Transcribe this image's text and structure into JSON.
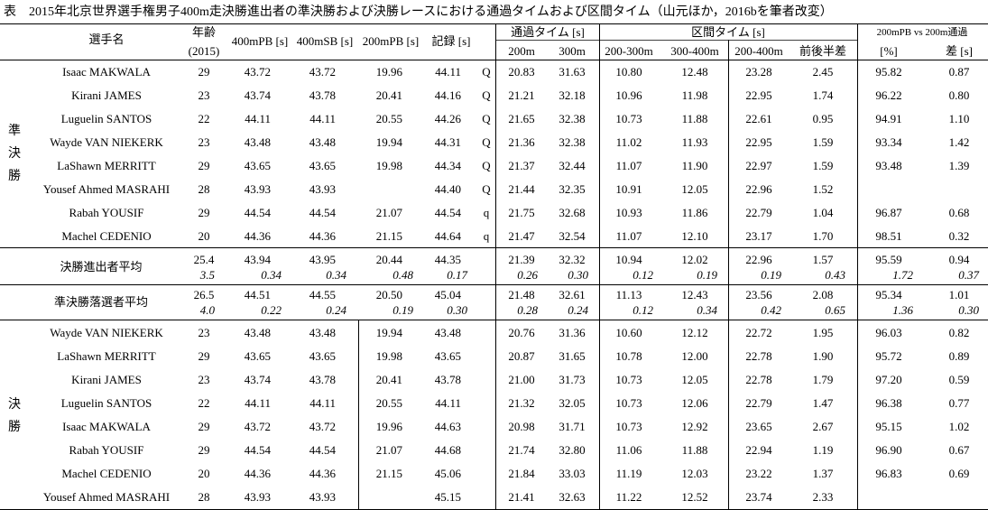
{
  "title": "表　2015年北京世界選手権男子400m走決勝進出者の準決勝および決勝レースにおける通過タイムおよび区間タイム（山元ほか，2016bを筆者改変）",
  "headers": {
    "athlete": "選手名",
    "age": "年齢",
    "age_sub": "(2015)",
    "pb400": "400mPB [s]",
    "sb400": "400mSB [s]",
    "pb200": "200mPB [s]",
    "record": "記録 [s]",
    "passing": "通過タイム [s]",
    "split": "区間タイム [s]",
    "compare": "200mPB vs 200m通過",
    "p200": "200m",
    "p300": "300m",
    "s200_300": "200-300m",
    "s300_400": "300-400m",
    "s200_400": "200-400m",
    "diff_half": "前後半差",
    "pct": "[%]",
    "diff_s": "差 [s]"
  },
  "group_labels": {
    "semi": [
      "準",
      "決",
      "勝"
    ],
    "final": [
      "決",
      "勝"
    ]
  },
  "semi_rows": [
    [
      "Isaac MAKWALA",
      "29",
      "43.72",
      "43.72",
      "19.96",
      "44.11",
      "Q",
      "20.83",
      "31.63",
      "10.80",
      "12.48",
      "23.28",
      "2.45",
      "95.82",
      "0.87"
    ],
    [
      "Kirani JAMES",
      "23",
      "43.74",
      "43.78",
      "20.41",
      "44.16",
      "Q",
      "21.21",
      "32.18",
      "10.96",
      "11.98",
      "22.95",
      "1.74",
      "96.22",
      "0.80"
    ],
    [
      "Luguelin SANTOS",
      "22",
      "44.11",
      "44.11",
      "20.55",
      "44.26",
      "Q",
      "21.65",
      "32.38",
      "10.73",
      "11.88",
      "22.61",
      "0.95",
      "94.91",
      "1.10"
    ],
    [
      "Wayde VAN NIEKERK",
      "23",
      "43.48",
      "43.48",
      "19.94",
      "44.31",
      "Q",
      "21.36",
      "32.38",
      "11.02",
      "11.93",
      "22.95",
      "1.59",
      "93.34",
      "1.42"
    ],
    [
      "LaShawn MERRITT",
      "29",
      "43.65",
      "43.65",
      "19.98",
      "44.34",
      "Q",
      "21.37",
      "32.44",
      "11.07",
      "11.90",
      "22.97",
      "1.59",
      "93.48",
      "1.39"
    ],
    [
      "Yousef Ahmed MASRAHI",
      "28",
      "43.93",
      "43.93",
      "",
      "44.40",
      "Q",
      "21.44",
      "32.35",
      "10.91",
      "12.05",
      "22.96",
      "1.52",
      "",
      ""
    ],
    [
      "Rabah YOUSIF",
      "29",
      "44.54",
      "44.54",
      "21.07",
      "44.54",
      "q",
      "21.75",
      "32.68",
      "10.93",
      "11.86",
      "22.79",
      "1.04",
      "96.87",
      "0.68"
    ],
    [
      "Machel CEDENIO",
      "20",
      "44.36",
      "44.36",
      "21.15",
      "44.64",
      "q",
      "21.47",
      "32.54",
      "11.07",
      "12.10",
      "23.17",
      "1.70",
      "98.51",
      "0.32"
    ]
  ],
  "avg_rows": [
    {
      "label": "決勝進出者平均",
      "mean": [
        "25.4",
        "43.94",
        "43.95",
        "20.44",
        "44.35",
        "21.39",
        "32.32",
        "10.94",
        "12.02",
        "22.96",
        "1.57",
        "95.59",
        "0.94"
      ],
      "sd": [
        "3.5",
        "0.34",
        "0.34",
        "0.48",
        "0.17",
        "0.26",
        "0.30",
        "0.12",
        "0.19",
        "0.19",
        "0.43",
        "1.72",
        "0.37"
      ]
    },
    {
      "label": "準決勝落選者平均",
      "mean": [
        "26.5",
        "44.51",
        "44.55",
        "20.50",
        "45.04",
        "21.48",
        "32.61",
        "11.13",
        "12.43",
        "23.56",
        "2.08",
        "95.34",
        "1.01"
      ],
      "sd": [
        "4.0",
        "0.22",
        "0.24",
        "0.19",
        "0.30",
        "0.28",
        "0.24",
        "0.12",
        "0.34",
        "0.42",
        "0.65",
        "1.36",
        "0.30"
      ]
    }
  ],
  "final_rows": [
    [
      "Wayde VAN NIEKERK",
      "23",
      "43.48",
      "43.48",
      "19.94",
      "43.48",
      "",
      "20.76",
      "31.36",
      "10.60",
      "12.12",
      "22.72",
      "1.95",
      "96.03",
      "0.82"
    ],
    [
      "LaShawn MERRITT",
      "29",
      "43.65",
      "43.65",
      "19.98",
      "43.65",
      "",
      "20.87",
      "31.65",
      "10.78",
      "12.00",
      "22.78",
      "1.90",
      "95.72",
      "0.89"
    ],
    [
      "Kirani JAMES",
      "23",
      "43.74",
      "43.78",
      "20.41",
      "43.78",
      "",
      "21.00",
      "31.73",
      "10.73",
      "12.05",
      "22.78",
      "1.79",
      "97.20",
      "0.59"
    ],
    [
      "Luguelin SANTOS",
      "22",
      "44.11",
      "44.11",
      "20.55",
      "44.11",
      "",
      "21.32",
      "32.05",
      "10.73",
      "12.06",
      "22.79",
      "1.47",
      "96.38",
      "0.77"
    ],
    [
      "Isaac MAKWALA",
      "29",
      "43.72",
      "43.72",
      "19.96",
      "44.63",
      "",
      "20.98",
      "31.71",
      "10.73",
      "12.92",
      "23.65",
      "2.67",
      "95.15",
      "1.02"
    ],
    [
      "Rabah YOUSIF",
      "29",
      "44.54",
      "44.54",
      "21.07",
      "44.68",
      "",
      "21.74",
      "32.80",
      "11.06",
      "11.88",
      "22.94",
      "1.19",
      "96.90",
      "0.67"
    ],
    [
      "Machel CEDENIO",
      "20",
      "44.36",
      "44.36",
      "21.15",
      "45.06",
      "",
      "21.84",
      "33.03",
      "11.19",
      "12.03",
      "23.22",
      "1.37",
      "96.83",
      "0.69"
    ],
    [
      "Yousef Ahmed MASRAHI",
      "28",
      "43.93",
      "43.93",
      "",
      "45.15",
      "",
      "21.41",
      "32.63",
      "11.22",
      "12.52",
      "23.74",
      "2.33",
      "",
      ""
    ]
  ]
}
